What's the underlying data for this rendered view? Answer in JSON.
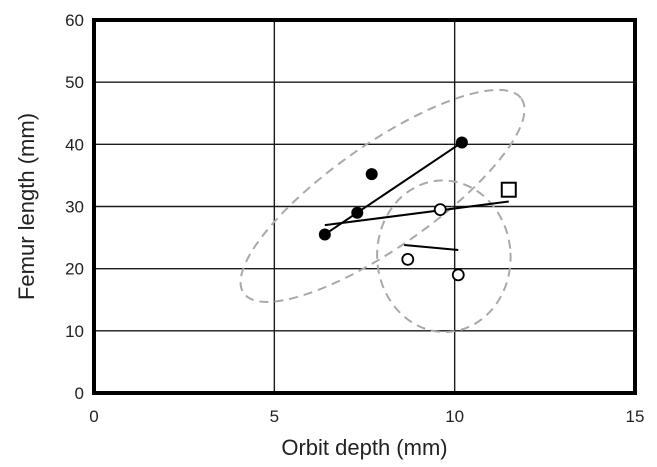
{
  "chart_data": {
    "type": "scatter",
    "xlabel": "Orbit depth (mm)",
    "ylabel": "Femur length (mm)",
    "xlim": [
      0,
      15
    ],
    "ylim": [
      0,
      60
    ],
    "x_ticks": [
      0,
      5,
      10,
      15
    ],
    "y_ticks": [
      0,
      10,
      20,
      30,
      40,
      50,
      60
    ],
    "grid": true,
    "series": [
      {
        "marker": "filled-circle",
        "points": [
          [
            6.4,
            25.5
          ],
          [
            7.3,
            29.0
          ],
          [
            7.7,
            35.2
          ],
          [
            10.2,
            40.3
          ]
        ]
      },
      {
        "marker": "open-circle",
        "points": [
          [
            8.7,
            21.5
          ],
          [
            9.6,
            29.5
          ],
          [
            10.1,
            19.0
          ]
        ]
      },
      {
        "marker": "open-square",
        "points": [
          [
            11.5,
            32.7
          ]
        ]
      }
    ],
    "lines": [
      {
        "from": [
          6.4,
          25.5
        ],
        "to": [
          10.2,
          40.3
        ]
      },
      {
        "from": [
          6.4,
          27.0
        ],
        "to": [
          11.5,
          30.8
        ]
      },
      {
        "from": [
          8.6,
          23.8
        ],
        "to": [
          10.1,
          23.0
        ]
      }
    ],
    "ellipses": [
      {
        "cx": 8.0,
        "cy": 31.7,
        "rx": 4.7,
        "ry": 8.3,
        "angle_deg": -35
      },
      {
        "cx": 9.7,
        "cy": 22.0,
        "rx": 1.85,
        "ry": 12.2,
        "angle_deg": -3
      }
    ]
  }
}
